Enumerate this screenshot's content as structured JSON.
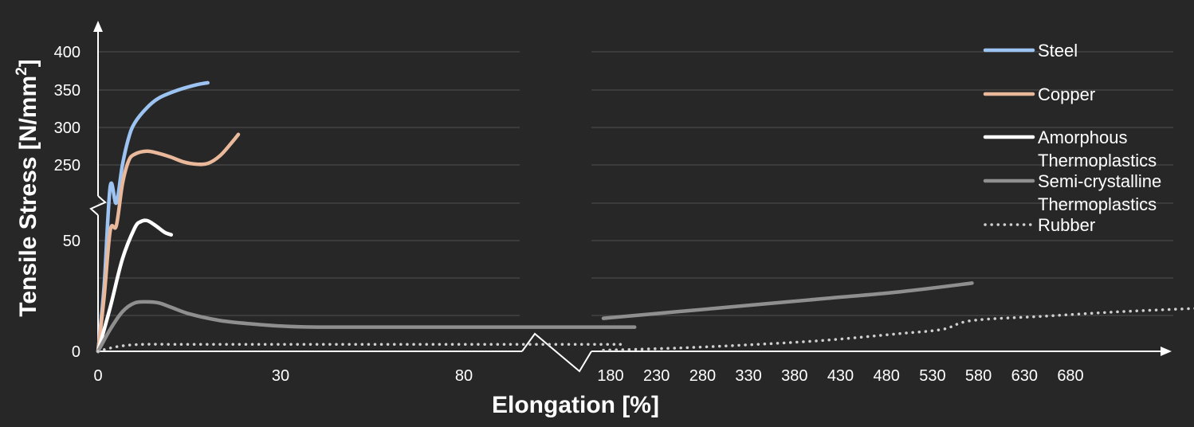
{
  "chart_data": {
    "type": "line",
    "xlabel": "Elongation [%]",
    "ylabel": "Tensile Stress [N/mm²]",
    "ylabel_main": "Tensile Stress [N/mm",
    "ylabel_sup": "2",
    "ylabel_end": "]",
    "x_axis_break": true,
    "y_axis_break": true,
    "grid": "horizontal",
    "legend_position": "right",
    "x_ticks_left": [
      "0",
      "30",
      "80"
    ],
    "x_ticks_right": [
      "180",
      "230",
      "280",
      "330",
      "380",
      "430",
      "480",
      "530",
      "580",
      "630",
      "680"
    ],
    "y_ticks": [
      "0",
      "50",
      "250",
      "300",
      "350",
      "400"
    ],
    "series": [
      {
        "name": "Steel",
        "color": "#9dc3f2",
        "style": "solid",
        "points": [
          [
            0,
            0
          ],
          [
            1,
            30
          ],
          [
            2,
            75
          ],
          [
            3,
            200
          ],
          [
            4,
            250
          ],
          [
            5,
            285
          ],
          [
            6,
            305
          ],
          [
            8,
            325
          ],
          [
            10,
            338
          ],
          [
            13,
            348
          ],
          [
            16,
            355
          ],
          [
            18,
            358
          ]
        ]
      },
      {
        "name": "Copper",
        "color": "#eab89a",
        "style": "solid",
        "points": [
          [
            0,
            0
          ],
          [
            1,
            25
          ],
          [
            2,
            55
          ],
          [
            3,
            170
          ],
          [
            4,
            225
          ],
          [
            5,
            255
          ],
          [
            6,
            264
          ],
          [
            8,
            268
          ],
          [
            10,
            265
          ],
          [
            12,
            260
          ],
          [
            14,
            254
          ],
          [
            16,
            251
          ],
          [
            18,
            252
          ],
          [
            20,
            262
          ],
          [
            22,
            280
          ],
          [
            23,
            290
          ]
        ]
      },
      {
        "name": "Amorphous Thermoplastics",
        "color": "#ffffff",
        "style": "solid",
        "label_lines": [
          "Amorphous",
          "Thermoplastics"
        ],
        "points": [
          [
            0,
            0
          ],
          [
            2,
            20
          ],
          [
            4,
            42
          ],
          [
            6,
            56
          ],
          [
            7,
            59
          ],
          [
            8,
            59.5
          ],
          [
            9,
            58
          ],
          [
            10,
            56
          ],
          [
            11,
            54
          ],
          [
            12,
            53
          ]
        ]
      },
      {
        "name": "Semi-crystalline Thermoplastics",
        "color": "#8f8f8f",
        "style": "solid",
        "label_lines": [
          "Semi-crystalline",
          "Thermoplastics"
        ],
        "points": [
          [
            0,
            0
          ],
          [
            2,
            10
          ],
          [
            4,
            18
          ],
          [
            6,
            22
          ],
          [
            8,
            22.5
          ],
          [
            10,
            22
          ],
          [
            12,
            20
          ],
          [
            15,
            17
          ],
          [
            20,
            14
          ],
          [
            25,
            12.5
          ],
          [
            30,
            11.5
          ],
          [
            36,
            11
          ],
          [
            50,
            11
          ],
          [
            70,
            11
          ],
          [
            88,
            11
          ],
          [
            180,
            15
          ],
          [
            230,
            18
          ],
          [
            280,
            21
          ],
          [
            330,
            24
          ],
          [
            380,
            27
          ],
          [
            430,
            31
          ]
        ]
      },
      {
        "name": "Rubber",
        "color": "#cfcfcf",
        "style": "dotted",
        "points": [
          [
            0,
            0
          ],
          [
            2,
            1.5
          ],
          [
            4,
            2.5
          ],
          [
            6,
            3
          ],
          [
            8,
            3.2
          ],
          [
            12,
            3.2
          ],
          [
            20,
            3.2
          ],
          [
            40,
            3.2
          ],
          [
            60,
            3.2
          ],
          [
            86,
            3.2
          ],
          [
            180,
            0.5
          ],
          [
            230,
            1.5
          ],
          [
            280,
            3
          ],
          [
            330,
            5
          ],
          [
            380,
            8
          ],
          [
            410,
            10
          ],
          [
            430,
            14
          ],
          [
            480,
            16
          ],
          [
            530,
            18
          ],
          [
            580,
            19.5
          ],
          [
            630,
            21
          ],
          [
            680,
            22.5
          ]
        ]
      }
    ]
  }
}
